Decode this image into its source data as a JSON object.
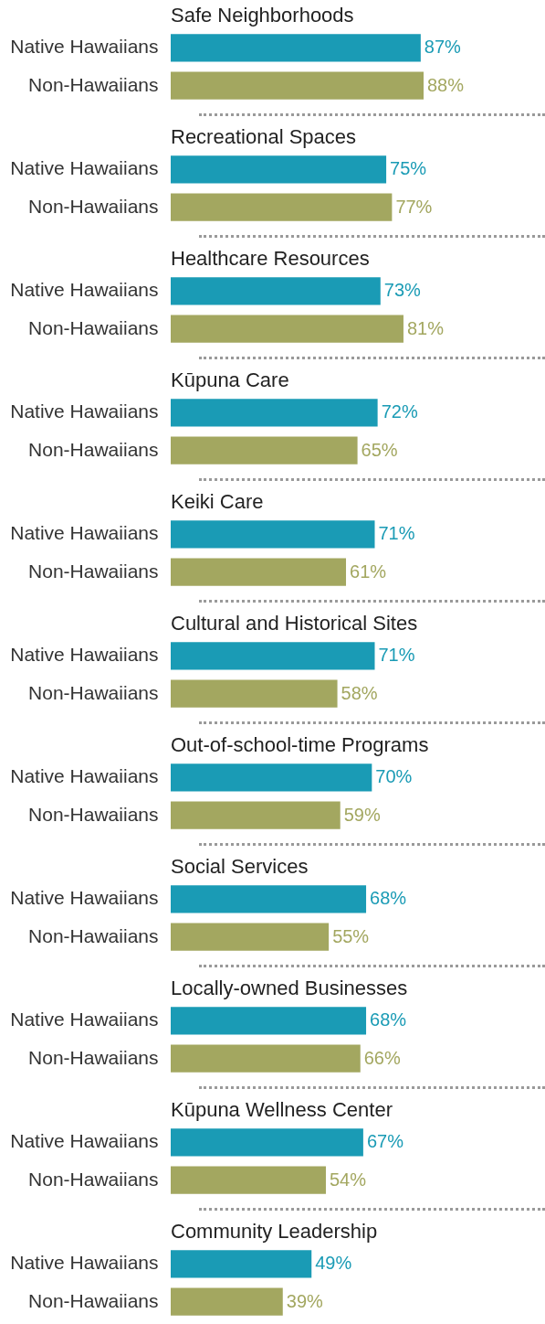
{
  "chart_data": [
    {
      "type": "bar",
      "orientation": "horizontal",
      "title": "Safe Neighborhoods",
      "categories": [
        "Native Hawaiians",
        "Non-Hawaiians"
      ],
      "values": [
        87,
        88
      ],
      "colors": [
        "#1a9bb5",
        "#a3a760"
      ],
      "value_labels": [
        "87%",
        "88%"
      ]
    },
    {
      "type": "bar",
      "orientation": "horizontal",
      "title": "Recreational Spaces",
      "categories": [
        "Native Hawaiians",
        "Non-Hawaiians"
      ],
      "values": [
        75,
        77
      ],
      "colors": [
        "#1a9bb5",
        "#a3a760"
      ],
      "value_labels": [
        "75%",
        "77%"
      ]
    },
    {
      "type": "bar",
      "orientation": "horizontal",
      "title": "Healthcare Resources",
      "categories": [
        "Native Hawaiians",
        "Non-Hawaiians"
      ],
      "values": [
        73,
        81
      ],
      "colors": [
        "#1a9bb5",
        "#a3a760"
      ],
      "value_labels": [
        "73%",
        "81%"
      ]
    },
    {
      "type": "bar",
      "orientation": "horizontal",
      "title": "Kūpuna Care",
      "categories": [
        "Native Hawaiians",
        "Non-Hawaiians"
      ],
      "values": [
        72,
        65
      ],
      "colors": [
        "#1a9bb5",
        "#a3a760"
      ],
      "value_labels": [
        "72%",
        "65%"
      ]
    },
    {
      "type": "bar",
      "orientation": "horizontal",
      "title": "Keiki Care",
      "categories": [
        "Native Hawaiians",
        "Non-Hawaiians"
      ],
      "values": [
        71,
        61
      ],
      "colors": [
        "#1a9bb5",
        "#a3a760"
      ],
      "value_labels": [
        "71%",
        "61%"
      ]
    },
    {
      "type": "bar",
      "orientation": "horizontal",
      "title": "Cultural and Historical Sites",
      "categories": [
        "Native Hawaiians",
        "Non-Hawaiians"
      ],
      "values": [
        71,
        58
      ],
      "colors": [
        "#1a9bb5",
        "#a3a760"
      ],
      "value_labels": [
        "71%",
        "58%"
      ]
    },
    {
      "type": "bar",
      "orientation": "horizontal",
      "title": "Out-of-school-time Programs",
      "categories": [
        "Native Hawaiians",
        "Non-Hawaiians"
      ],
      "values": [
        70,
        59
      ],
      "colors": [
        "#1a9bb5",
        "#a3a760"
      ],
      "value_labels": [
        "70%",
        "59%"
      ]
    },
    {
      "type": "bar",
      "orientation": "horizontal",
      "title": "Social Services",
      "categories": [
        "Native Hawaiians",
        "Non-Hawaiians"
      ],
      "values": [
        68,
        55
      ],
      "colors": [
        "#1a9bb5",
        "#a3a760"
      ],
      "value_labels": [
        "68%",
        "55%"
      ]
    },
    {
      "type": "bar",
      "orientation": "horizontal",
      "title": "Locally-owned Businesses",
      "categories": [
        "Native Hawaiians",
        "Non-Hawaiians"
      ],
      "values": [
        68,
        66
      ],
      "colors": [
        "#1a9bb5",
        "#a3a760"
      ],
      "value_labels": [
        "68%",
        "66%"
      ]
    },
    {
      "type": "bar",
      "orientation": "horizontal",
      "title": "Kūpuna Wellness Center",
      "categories": [
        "Native Hawaiians",
        "Non-Hawaiians"
      ],
      "values": [
        67,
        54
      ],
      "colors": [
        "#1a9bb5",
        "#a3a760"
      ],
      "value_labels": [
        "67%",
        "54%"
      ]
    },
    {
      "type": "bar",
      "orientation": "horizontal",
      "title": "Community Leadership",
      "categories": [
        "Native Hawaiians",
        "Non-Hawaiians"
      ],
      "values": [
        49,
        39
      ],
      "colors": [
        "#1a9bb5",
        "#a3a760"
      ],
      "value_labels": [
        "49%",
        "39%"
      ]
    }
  ]
}
